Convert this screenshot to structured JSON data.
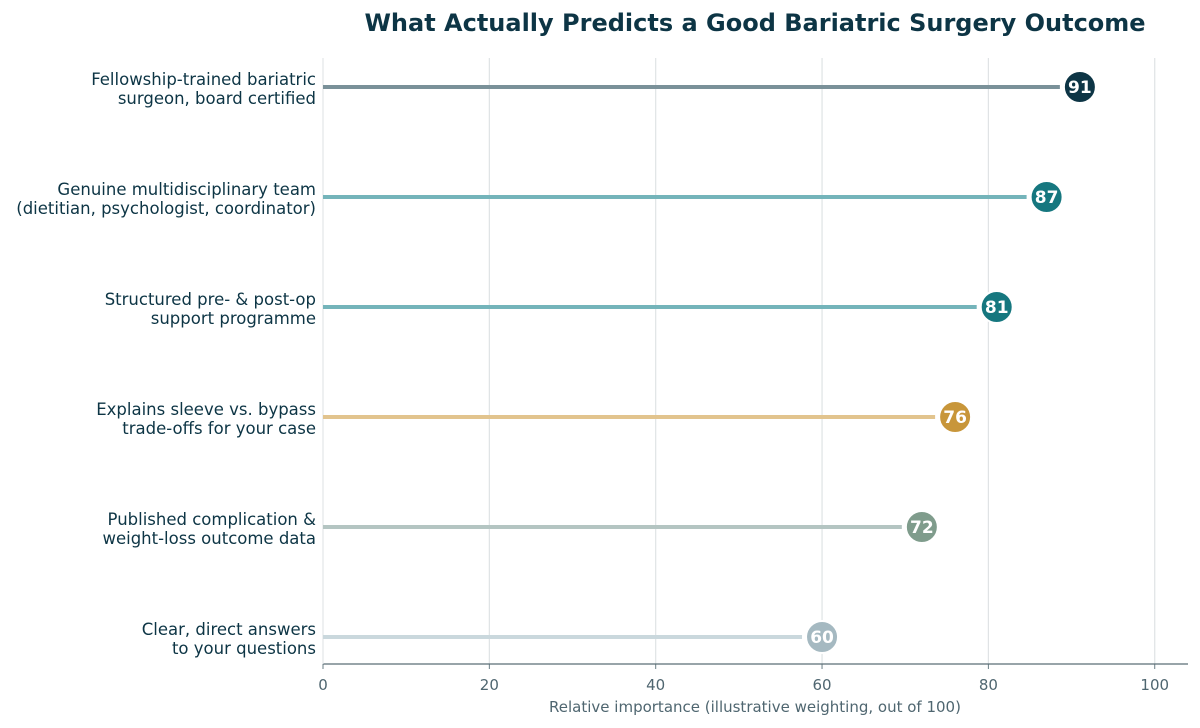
{
  "chart_data": {
    "type": "lollipop",
    "title": "What Actually Predicts a Good Bariatric Surgery Outcome",
    "xlabel": "Relative importance (illustrative weighting, out of 100)",
    "ylabel": "",
    "xlim": [
      0,
      104
    ],
    "xticks": [
      "0",
      "20",
      "40",
      "60",
      "80",
      "100"
    ],
    "grid": "vertical",
    "categories": [
      [
        "Fellowship-trained bariatric",
        "surgeon, board certified"
      ],
      [
        "Genuine multidisciplinary team",
        "(dietitian, psychologist, coordinator)"
      ],
      [
        "Structured pre- & post-op",
        "support programme"
      ],
      [
        "Explains sleeve vs. bypass",
        "trade-offs for your case"
      ],
      [
        "Published complication &",
        "weight-loss outcome data"
      ],
      [
        "Clear, direct answers",
        "to your questions"
      ]
    ],
    "values": [
      91,
      87,
      81,
      76,
      72,
      60
    ],
    "stem_colors": [
      "#7a9199",
      "#74b4ba",
      "#74b4ba",
      "#e2c48e",
      "#b4c5c2",
      "#cad8dd"
    ],
    "dot_colors": [
      "#0d3545",
      "#16777f",
      "#16777f",
      "#c8963a",
      "#7f9c8c",
      "#a5b9c1"
    ]
  }
}
